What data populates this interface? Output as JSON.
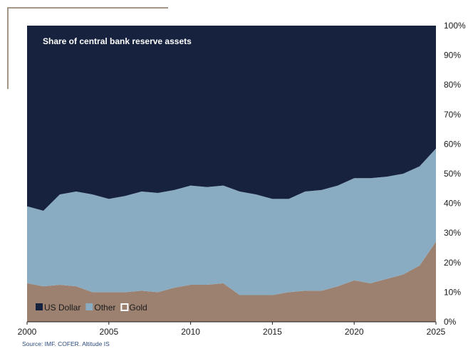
{
  "chart_data": {
    "type": "area",
    "stacked": true,
    "title": "Share of central bank reserve assets",
    "x": [
      2000,
      2001,
      2002,
      2003,
      2004,
      2005,
      2006,
      2007,
      2008,
      2009,
      2010,
      2011,
      2012,
      2013,
      2014,
      2015,
      2016,
      2017,
      2018,
      2019,
      2020,
      2021,
      2022,
      2023,
      2024,
      2025
    ],
    "xlim": [
      2000,
      2025
    ],
    "ylim": [
      0,
      100
    ],
    "x_ticks": [
      "2000",
      "2005",
      "2010",
      "2015",
      "2020",
      "2025"
    ],
    "y_ticks": [
      "0%",
      "10%",
      "20%",
      "30%",
      "40%",
      "50%",
      "60%",
      "70%",
      "80%",
      "90%",
      "100%"
    ],
    "y_axis_side": "right",
    "series": [
      {
        "name": "Gold",
        "color": "#9c8170",
        "values": [
          13,
          12,
          12.5,
          12,
          10,
          10,
          10,
          10.5,
          10,
          11.5,
          12.5,
          12.5,
          13,
          9,
          9,
          9,
          10,
          10.5,
          10.5,
          12,
          14,
          13,
          14.5,
          16,
          19,
          27
        ]
      },
      {
        "name": "Other",
        "color": "#8aacc2",
        "values": [
          26,
          25.5,
          30.5,
          32,
          33,
          31.5,
          32.5,
          33.5,
          33.5,
          33,
          33.5,
          33,
          33,
          35,
          34,
          32.5,
          31.5,
          33.5,
          34,
          34,
          34.5,
          35.5,
          34.5,
          34,
          33.5,
          31.5
        ]
      },
      {
        "name": "US Dollar",
        "color": "#17233e",
        "values": [
          61,
          62.5,
          57,
          56,
          57,
          58.5,
          57.5,
          56,
          56.5,
          55.5,
          54,
          54.5,
          54,
          56,
          57,
          58.5,
          58.5,
          56,
          55.5,
          54,
          51.5,
          51.5,
          51,
          50,
          47.5,
          41.5
        ]
      }
    ],
    "legend": {
      "position": "bottom-left",
      "items": [
        {
          "label": "US Dollar",
          "color": "#17233e",
          "style": "filled"
        },
        {
          "label": "Other",
          "color": "#8aacc2",
          "style": "filled"
        },
        {
          "label": "Gold",
          "color": "#ffffff",
          "style": "outline"
        }
      ]
    }
  },
  "source": "Source: IMF. COFER. Altitude IS"
}
